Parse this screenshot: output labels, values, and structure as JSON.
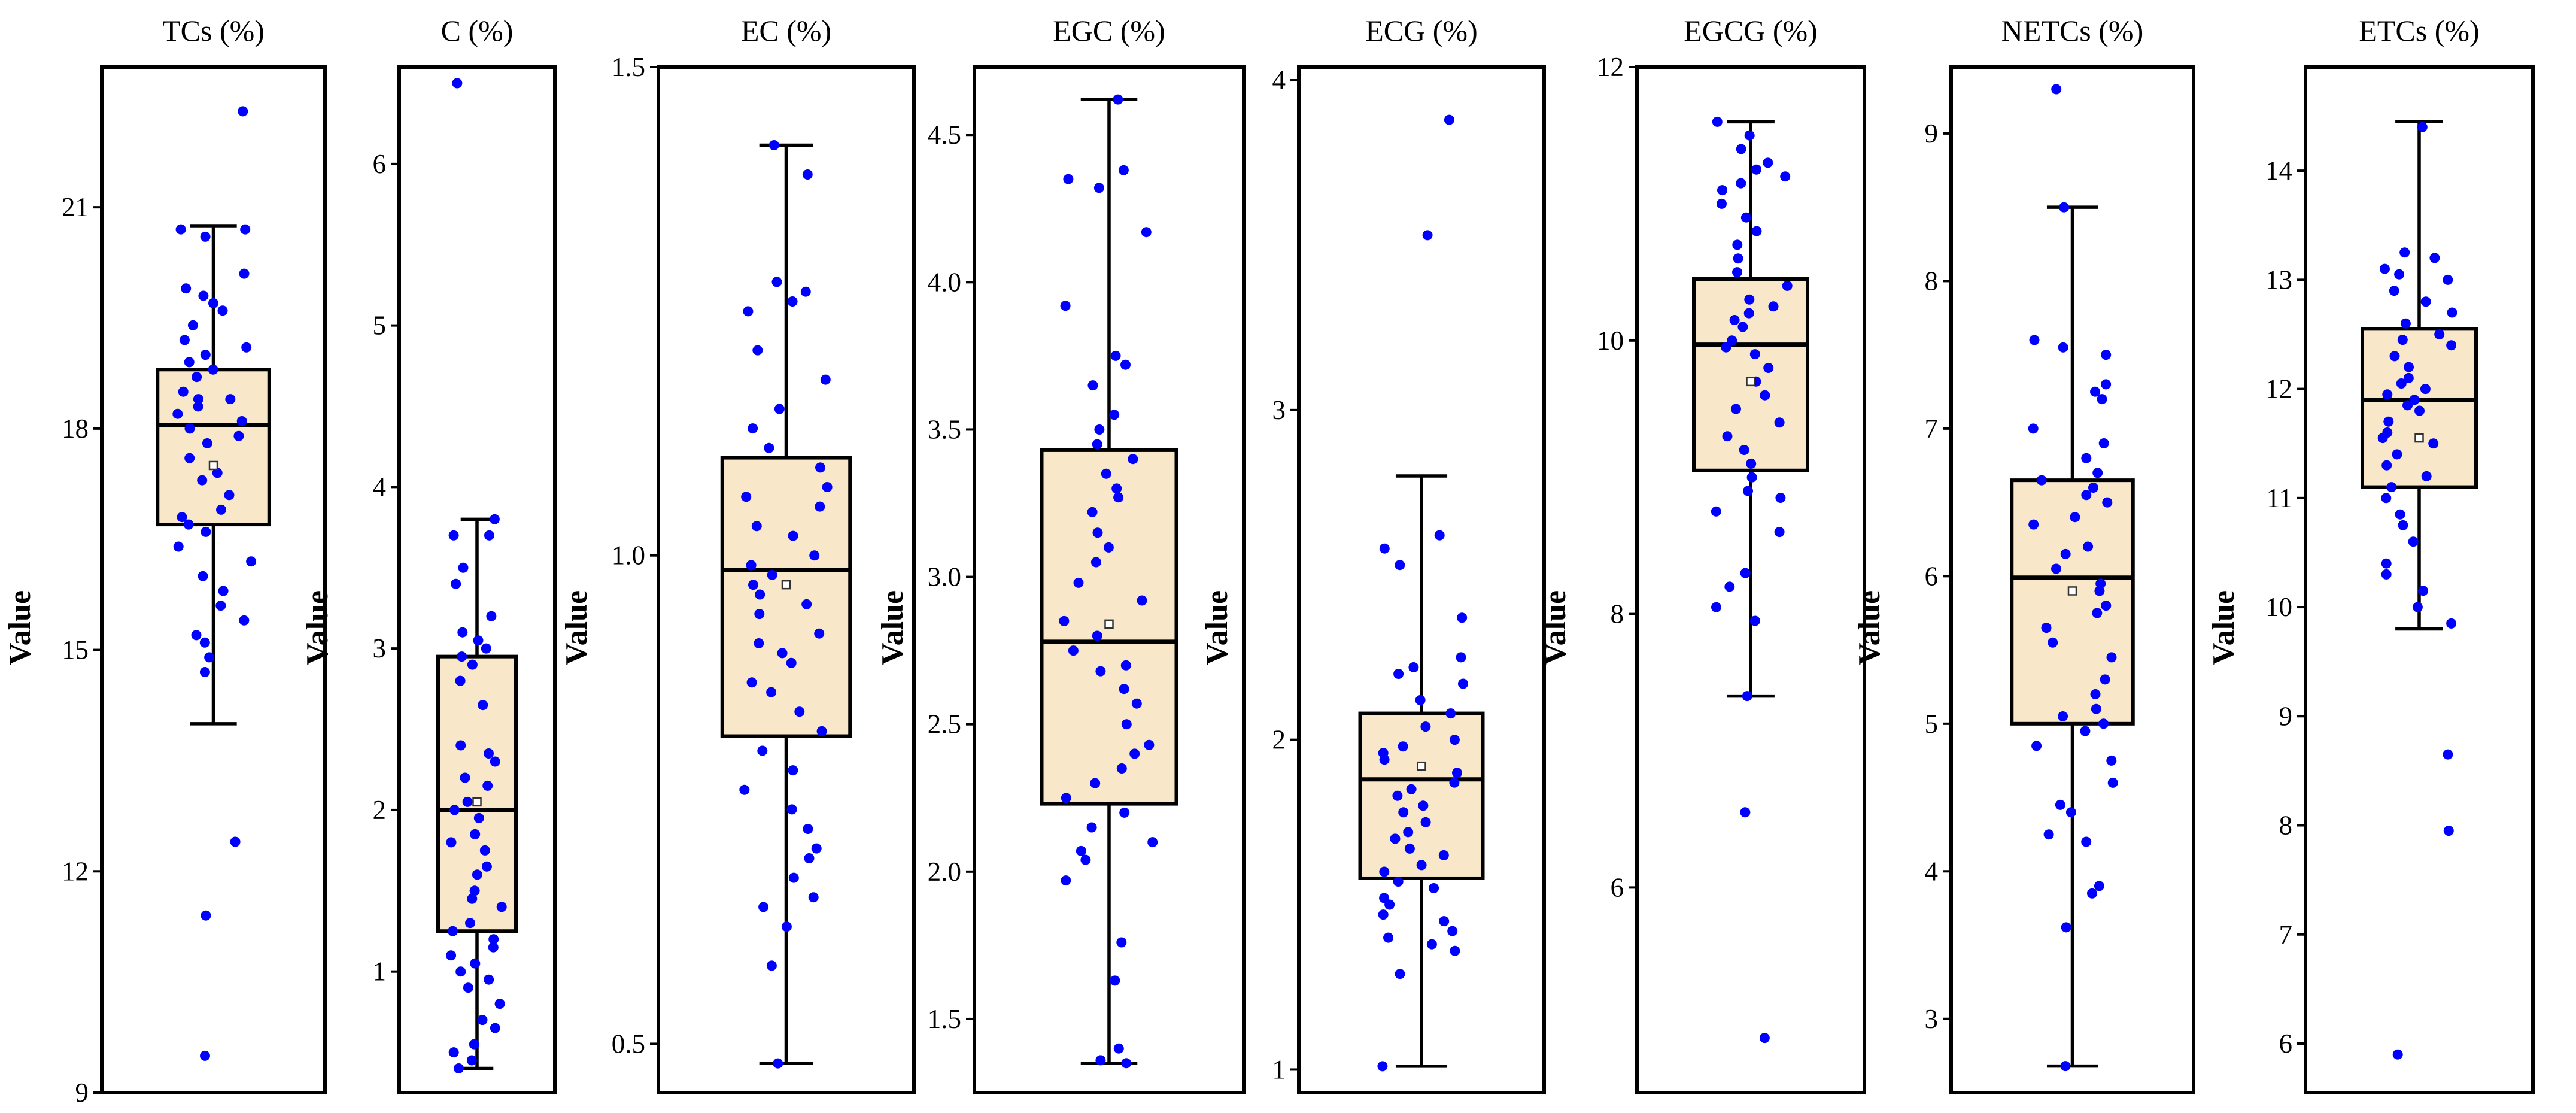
{
  "colors": {
    "point": "#0000ff",
    "box_fill": "#f8e7c8",
    "line": "#000000"
  },
  "chart_data": [
    {
      "type": "box",
      "title": "TCs (%)",
      "ylabel": "Value",
      "ylim": [
        9,
        22.9
      ],
      "yticks": [
        9,
        12,
        15,
        18,
        21
      ],
      "box": {
        "whisker_low": 14.0,
        "q1": 16.7,
        "median": 18.05,
        "q3": 18.8,
        "whisker_high": 20.75,
        "mean": 17.5
      },
      "points": [
        22.3,
        20.7,
        20.7,
        20.6,
        20.1,
        19.9,
        19.8,
        19.7,
        19.6,
        19.4,
        19.2,
        19.1,
        19.0,
        18.9,
        18.8,
        18.7,
        18.5,
        18.4,
        18.4,
        18.3,
        18.2,
        18.1,
        18.0,
        17.9,
        17.8,
        17.6,
        17.4,
        17.3,
        17.1,
        16.9,
        16.8,
        16.7,
        16.6,
        16.4,
        16.2,
        16.0,
        15.8,
        15.6,
        15.4,
        15.2,
        15.1,
        14.9,
        14.7,
        12.4,
        11.4,
        9.5
      ]
    },
    {
      "type": "box",
      "title": "C (%)",
      "ylabel": "Value",
      "ylim": [
        0.25,
        6.6
      ],
      "yticks": [
        1,
        2,
        3,
        4,
        5,
        6
      ],
      "box": {
        "whisker_low": 0.4,
        "q1": 1.25,
        "median": 2.0,
        "q3": 2.95,
        "whisker_high": 3.8,
        "mean": 2.05
      },
      "points": [
        6.5,
        3.8,
        3.7,
        3.7,
        3.5,
        3.4,
        3.2,
        3.1,
        3.05,
        3.0,
        2.95,
        2.9,
        2.8,
        2.65,
        2.4,
        2.35,
        2.3,
        2.2,
        2.15,
        2.05,
        2.0,
        1.95,
        1.85,
        1.8,
        1.75,
        1.65,
        1.6,
        1.5,
        1.45,
        1.4,
        1.3,
        1.25,
        1.2,
        1.15,
        1.1,
        1.05,
        1.0,
        0.95,
        0.9,
        0.8,
        0.7,
        0.65,
        0.55,
        0.5,
        0.45,
        0.4
      ]
    },
    {
      "type": "box",
      "title": "EC (%)",
      "ylabel": "Value",
      "ylim": [
        0.45,
        1.5
      ],
      "yticks": [
        0.5,
        1.0,
        1.5
      ],
      "box": {
        "whisker_low": 0.48,
        "q1": 0.815,
        "median": 0.985,
        "q3": 1.1,
        "whisker_high": 1.42,
        "mean": 0.97
      },
      "points": [
        1.42,
        1.39,
        1.28,
        1.27,
        1.26,
        1.25,
        1.21,
        1.18,
        1.15,
        1.13,
        1.11,
        1.09,
        1.07,
        1.06,
        1.05,
        1.03,
        1.02,
        1.0,
        0.99,
        0.98,
        0.97,
        0.96,
        0.95,
        0.94,
        0.92,
        0.91,
        0.9,
        0.89,
        0.87,
        0.86,
        0.84,
        0.82,
        0.8,
        0.78,
        0.76,
        0.74,
        0.72,
        0.7,
        0.69,
        0.67,
        0.65,
        0.64,
        0.62,
        0.58,
        0.48
      ]
    },
    {
      "type": "box",
      "title": "EGC (%)",
      "ylabel": "Value",
      "ylim": [
        1.25,
        4.73
      ],
      "yticks": [
        1.5,
        2.0,
        2.5,
        3.0,
        3.5,
        4.0,
        4.5
      ],
      "box": {
        "whisker_low": 1.35,
        "q1": 2.23,
        "median": 2.78,
        "q3": 3.43,
        "whisker_high": 4.62,
        "mean": 2.84
      },
      "points": [
        4.62,
        4.38,
        4.35,
        4.32,
        4.17,
        3.92,
        3.75,
        3.72,
        3.65,
        3.55,
        3.5,
        3.45,
        3.4,
        3.35,
        3.3,
        3.27,
        3.22,
        3.15,
        3.1,
        3.05,
        2.98,
        2.92,
        2.85,
        2.8,
        2.75,
        2.7,
        2.68,
        2.62,
        2.57,
        2.5,
        2.43,
        2.4,
        2.35,
        2.3,
        2.25,
        2.2,
        2.15,
        2.1,
        2.07,
        2.04,
        1.97,
        1.76,
        1.63,
        1.4,
        1.36,
        1.35
      ]
    },
    {
      "type": "box",
      "title": "ECG (%)",
      "ylabel": "Value",
      "ylim": [
        0.93,
        4.04
      ],
      "yticks": [
        1,
        2,
        3,
        4
      ],
      "box": {
        "whisker_low": 1.01,
        "q1": 1.58,
        "median": 1.88,
        "q3": 2.08,
        "whisker_high": 2.8,
        "mean": 1.92
      },
      "points": [
        3.88,
        3.53,
        2.62,
        2.58,
        2.53,
        2.37,
        2.25,
        2.22,
        2.2,
        2.17,
        2.12,
        2.08,
        2.04,
        2.0,
        1.98,
        1.96,
        1.94,
        1.9,
        1.87,
        1.85,
        1.83,
        1.8,
        1.78,
        1.75,
        1.72,
        1.7,
        1.67,
        1.65,
        1.62,
        1.6,
        1.57,
        1.55,
        1.52,
        1.5,
        1.47,
        1.45,
        1.42,
        1.4,
        1.38,
        1.36,
        1.29,
        1.01
      ]
    },
    {
      "type": "box",
      "title": "EGCG (%)",
      "ylabel": "Value",
      "ylim": [
        4.5,
        12.0
      ],
      "yticks": [
        6,
        8,
        10,
        12
      ],
      "box": {
        "whisker_low": 7.4,
        "q1": 9.05,
        "median": 9.97,
        "q3": 10.45,
        "whisker_high": 11.6,
        "mean": 9.7
      },
      "points": [
        11.6,
        11.5,
        11.4,
        11.3,
        11.25,
        11.2,
        11.15,
        11.1,
        11.0,
        10.9,
        10.8,
        10.7,
        10.6,
        10.5,
        10.4,
        10.3,
        10.25,
        10.2,
        10.15,
        10.1,
        10.0,
        9.95,
        9.9,
        9.8,
        9.7,
        9.6,
        9.5,
        9.4,
        9.3,
        9.2,
        9.1,
        9.0,
        8.9,
        8.85,
        8.75,
        8.6,
        8.3,
        8.2,
        8.05,
        7.95,
        7.4,
        6.55,
        4.9
      ]
    },
    {
      "type": "box",
      "title": "NETCs (%)",
      "ylabel": "Value",
      "ylim": [
        2.5,
        9.45
      ],
      "yticks": [
        3,
        4,
        5,
        6,
        7,
        8,
        9
      ],
      "box": {
        "whisker_low": 2.68,
        "q1": 5.0,
        "median": 5.99,
        "q3": 6.65,
        "whisker_high": 8.5,
        "mean": 5.9
      },
      "points": [
        9.3,
        8.5,
        7.6,
        7.55,
        7.5,
        7.3,
        7.25,
        7.2,
        7.0,
        6.9,
        6.8,
        6.7,
        6.65,
        6.6,
        6.55,
        6.5,
        6.4,
        6.35,
        6.2,
        6.15,
        6.05,
        5.95,
        5.9,
        5.8,
        5.75,
        5.65,
        5.55,
        5.45,
        5.3,
        5.2,
        5.1,
        5.05,
        5.0,
        4.95,
        4.85,
        4.75,
        4.6,
        4.45,
        4.4,
        4.25,
        4.2,
        3.9,
        3.85,
        3.62,
        2.68
      ]
    },
    {
      "type": "box",
      "title": "ETCs (%)",
      "ylabel": "Value",
      "ylim": [
        5.55,
        14.95
      ],
      "yticks": [
        6,
        7,
        8,
        9,
        10,
        11,
        12,
        13,
        14
      ],
      "box": {
        "whisker_low": 9.8,
        "q1": 11.1,
        "median": 11.9,
        "q3": 12.55,
        "whisker_high": 14.45,
        "mean": 11.55
      },
      "points": [
        14.4,
        13.25,
        13.2,
        13.1,
        13.05,
        13.0,
        12.9,
        12.8,
        12.7,
        12.6,
        12.5,
        12.45,
        12.4,
        12.3,
        12.2,
        12.1,
        12.05,
        12.0,
        11.95,
        11.9,
        11.85,
        11.8,
        11.7,
        11.6,
        11.55,
        11.5,
        11.4,
        11.3,
        11.2,
        11.1,
        11.0,
        10.85,
        10.75,
        10.6,
        10.4,
        10.3,
        10.15,
        10.0,
        9.85,
        8.65,
        7.95,
        5.9
      ]
    }
  ]
}
